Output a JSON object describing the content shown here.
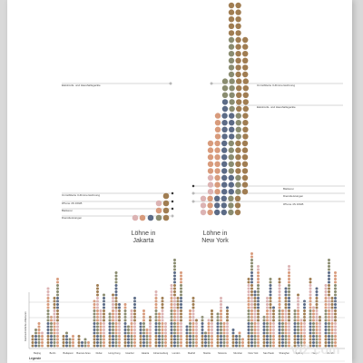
{
  "chart_data": {
    "type": "scatter",
    "colors": {
      "olive": "#8a8c70",
      "brown": "#a07d52",
      "blue": "#5c6b86",
      "salmon": "#d89b7c",
      "pink": "#dcb3b3",
      "line": "#9a9a9a",
      "bg": "#ffffff"
    },
    "comparison": {
      "jakarta": {
        "title_line1": "Löhne in",
        "title_line2": "Jakarta",
        "labels": [
          "Unmöblierte 3-Zimmerwohnung",
          "iPhone 4S 16GB",
          "Bäckerei",
          "Dienstleistungen"
        ]
      },
      "newyork": {
        "title_line1": "Löhne in",
        "title_line2": "New York",
        "labels": [
          "Elektronik- und Haushaltsgeräte",
          "Unmöblierte 3-Zimmerwohnung",
          "Elektronik- und Haushaltsgeräte",
          "Bäckerei",
          "Dienstleistungen",
          "iPhone 4S 16GB"
        ]
      }
    },
    "cities": [
      "Beijing",
      "Berlin",
      "Budapest",
      "Buenos Aires",
      "Dubai",
      "Hong Kong",
      "Istanbul",
      "Jakarta",
      "Johannesburg",
      "London",
      "Madrid",
      "Manila",
      "Moscow",
      "Mumbai",
      "New York",
      "Sao Paulo",
      "Shanghai",
      "Sydney",
      "Tokyo",
      "Zurich"
    ],
    "bar_heights": [
      8,
      22,
      6,
      4,
      20,
      24,
      16,
      14,
      18,
      28,
      16,
      12,
      18,
      6,
      30,
      22,
      26,
      20,
      22,
      28
    ],
    "y_axis_label": "Durchschnittliche Arbeitszeit",
    "legend_title": "Legende"
  },
  "watermark": "VIZ.com"
}
